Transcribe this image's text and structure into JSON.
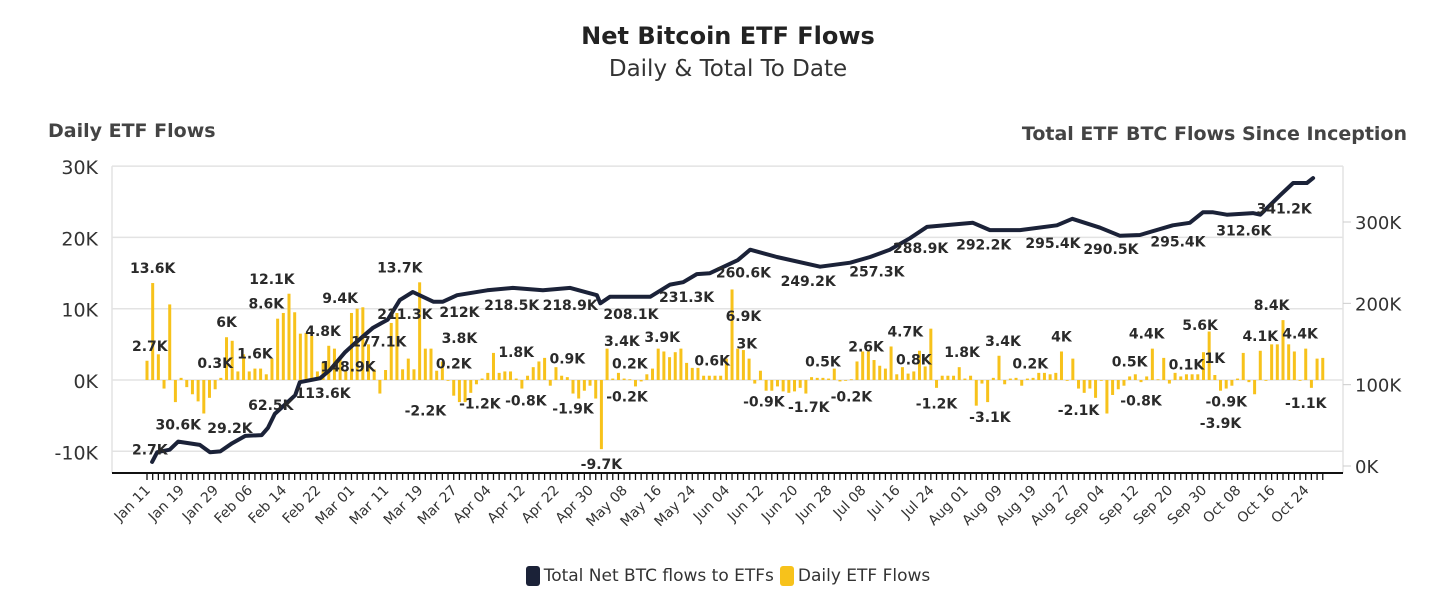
{
  "chart_data": {
    "type": "bar+line",
    "title": "Net Bitcoin ETF Flows",
    "subtitle": "Daily & Total To Date",
    "ylabel_left": "Daily ETF Flows",
    "ylabel_right": "Total ETF BTC Flows Since Inception",
    "ylim_left": [
      -10,
      30
    ],
    "ylim_right": [
      0,
      350
    ],
    "yticks_left": [
      "-10K",
      "0K",
      "10K",
      "20K",
      "30K"
    ],
    "yticks_left_values": [
      -10,
      0,
      10,
      20,
      30
    ],
    "yticks_right": [
      "0K",
      "100K",
      "200K",
      "300K"
    ],
    "yticks_right_values": [
      0,
      100,
      200,
      300
    ],
    "units": "thousand BTC",
    "grid": true,
    "legend_position": "bottom",
    "x_tick_labels": [
      "Jan 11",
      "Jan 19",
      "Jan 29",
      "Feb 06",
      "Feb 14",
      "Feb 22",
      "Mar 01",
      "Mar 11",
      "Mar 19",
      "Mar 27",
      "Apr 04",
      "Apr 12",
      "Apr 22",
      "Apr 30",
      "May 08",
      "May 16",
      "May 24",
      "Jun 04",
      "Jun 12",
      "Jun 20",
      "Jun 28",
      "Jul 08",
      "Jul 16",
      "Jul 24",
      "Aug 01",
      "Aug 09",
      "Aug 19",
      "Aug 27",
      "Sep 04",
      "Sep 12",
      "Sep 20",
      "Sep 30",
      "Oct 08",
      "Oct 16",
      "Oct 24"
    ],
    "x_tick_every_n_days": 6,
    "series": [
      {
        "name": "Daily ETF Flows",
        "type": "bar",
        "axis": "left",
        "color": "#f7c21b",
        "values": [
          2.7,
          13.6,
          3.6,
          -1.2,
          10.6,
          -3.1,
          0.3,
          -1.0,
          -2.0,
          -3.0,
          -4.7,
          -2.5,
          -1.3,
          0.3,
          6.0,
          5.5,
          1.2,
          3.6,
          1.2,
          1.6,
          1.6,
          0.8,
          3.0,
          8.6,
          9.4,
          12.1,
          9.5,
          6.5,
          6.6,
          6.2,
          1.2,
          2.5,
          4.8,
          4.4,
          3.0,
          1.2,
          9.4,
          10.0,
          10.2,
          5.0,
          1.5,
          -1.9,
          1.4,
          8.0,
          9.4,
          1.5,
          3.0,
          1.5,
          13.7,
          4.4,
          4.4,
          1.3,
          2.6,
          -0.1,
          -2.2,
          -3.1,
          -3.1,
          -1.8,
          -0.6,
          0.2,
          1.0,
          3.8,
          1.0,
          1.2,
          1.2,
          0.2,
          -1.2,
          0.6,
          1.8,
          2.6,
          3.1,
          -0.8,
          1.8,
          0.6,
          0.4,
          -1.9,
          -2.6,
          -1.5,
          -0.8,
          -2.6,
          -9.7,
          4.4,
          0.2,
          1.0,
          0.2,
          0.1,
          -0.9,
          -0.2,
          0.8,
          1.6,
          4.4,
          4.0,
          3.2,
          3.9,
          4.4,
          2.4,
          1.7,
          1.7,
          0.6,
          0.6,
          0.6,
          0.6,
          3.0,
          12.7,
          4.4,
          4.2,
          3.0,
          -0.5,
          1.3,
          -1.5,
          -1.5,
          -0.9,
          -1.6,
          -1.8,
          -1.6,
          -1.1,
          -1.9,
          0.4,
          0.3,
          0.3,
          0.2,
          1.6,
          -0.2,
          -0.1,
          0.1,
          2.6,
          4.0,
          4.0,
          2.8,
          2.0,
          1.6,
          4.7,
          0.8,
          1.8,
          0.9,
          1.2,
          4.1,
          1.9,
          7.2,
          -1.1,
          0.6,
          0.6,
          0.6,
          1.8,
          0.2,
          0.6,
          -3.6,
          -0.5,
          -3.1,
          0.3,
          3.4,
          -0.6,
          0.2,
          0.3,
          -0.8,
          0.2,
          0.3,
          1.0,
          1.0,
          0.8,
          1.0,
          4.0,
          0.0,
          3.0,
          -1.2,
          -1.8,
          -1.2,
          -2.5,
          0.0,
          -4.7,
          -2.1,
          -1.3,
          -0.8,
          0.5,
          0.8,
          -0.3,
          0.5,
          4.4,
          0.1,
          3.1,
          -0.5,
          1.0,
          0.5,
          0.8,
          0.8,
          0.8,
          3.9,
          6.8,
          0.7,
          -1.5,
          -1.2,
          -0.8,
          0.2,
          3.8,
          -0.3,
          -2.0,
          4.1,
          0.0,
          5.0,
          5.0,
          8.4,
          5.0,
          4.0,
          0.0,
          4.4,
          -1.1,
          3.0,
          3.1
        ]
      },
      {
        "name": "Total Net BTC flows to ETFs",
        "type": "line",
        "axis": "right",
        "color": "#1b2238",
        "points": [
          [
            0.9,
            5
          ],
          [
            1.8,
            17
          ],
          [
            4,
            20
          ],
          [
            5.5,
            30
          ],
          [
            9.3,
            26
          ],
          [
            11.1,
            17
          ],
          [
            12.9,
            18
          ],
          [
            15,
            28
          ],
          [
            17.3,
            37
          ],
          [
            20.2,
            38
          ],
          [
            21.3,
            47
          ],
          [
            22.5,
            64
          ],
          [
            26.1,
            87
          ],
          [
            26.9,
            103
          ],
          [
            30.5,
            108
          ],
          [
            32.2,
            118
          ],
          [
            34.9,
            140
          ],
          [
            36.3,
            149
          ],
          [
            39.8,
            170
          ],
          [
            42.4,
            180
          ],
          [
            44.5,
            204
          ],
          [
            46.8,
            214
          ],
          [
            50.4,
            202
          ],
          [
            52.1,
            202
          ],
          [
            54.6,
            210
          ],
          [
            59.9,
            216
          ],
          [
            64.4,
            219
          ],
          [
            69.7,
            216
          ],
          [
            74.5,
            219
          ],
          [
            79.2,
            210
          ],
          [
            79.8,
            200
          ],
          [
            81.5,
            208
          ],
          [
            88.6,
            208
          ],
          [
            92.1,
            223
          ],
          [
            94.4,
            226
          ],
          [
            96.8,
            236
          ],
          [
            99.1,
            237
          ],
          [
            104,
            253
          ],
          [
            106.2,
            266
          ],
          [
            110.9,
            257
          ],
          [
            118.5,
            245
          ],
          [
            123.8,
            250
          ],
          [
            127.3,
            257
          ],
          [
            130.8,
            266
          ],
          [
            134.3,
            280
          ],
          [
            137.3,
            294
          ],
          [
            145.4,
            299
          ],
          [
            148.4,
            290
          ],
          [
            153.7,
            290
          ],
          [
            160.2,
            296
          ],
          [
            162.9,
            304
          ],
          [
            167.8,
            293
          ],
          [
            171.3,
            283
          ],
          [
            174.8,
            284
          ],
          [
            180.6,
            296
          ],
          [
            183.6,
            299
          ],
          [
            185.9,
            312
          ],
          [
            187.7,
            312
          ],
          [
            190.1,
            309
          ],
          [
            194.7,
            311
          ],
          [
            196,
            309
          ],
          [
            199.5,
            333
          ],
          [
            201.8,
            348
          ],
          [
            204.2,
            348
          ],
          [
            205.3,
            354
          ]
        ]
      }
    ],
    "bar_labels": [
      {
        "day": 0.5,
        "text": "2.7K"
      },
      {
        "day": 1,
        "text": "13.6K"
      },
      {
        "day": 12,
        "text": "0.3K"
      },
      {
        "day": 14,
        "text": "6K"
      },
      {
        "day": 19,
        "text": "1.6K"
      },
      {
        "day": 21,
        "text": "8.6K"
      },
      {
        "day": 22,
        "text": "12.1K"
      },
      {
        "day": 31,
        "text": "4.8K"
      },
      {
        "day": 34,
        "text": "9.4K"
      },
      {
        "day": 44.5,
        "text": "13.7K"
      },
      {
        "day": 49,
        "text": "-2.2K"
      },
      {
        "day": 54,
        "text": "0.2K"
      },
      {
        "day": 55,
        "text": "3.8K"
      },
      {
        "day": 58.6,
        "text": "-1.2K"
      },
      {
        "day": 65,
        "text": "1.8K"
      },
      {
        "day": 66.7,
        "text": "-0.8K"
      },
      {
        "day": 74,
        "text": "0.9K"
      },
      {
        "day": 75,
        "text": "-1.9K"
      },
      {
        "day": 80,
        "text": "-9.7K"
      },
      {
        "day": 83.6,
        "text": "3.4K"
      },
      {
        "day": 84.5,
        "text": "-0.2K"
      },
      {
        "day": 85,
        "text": "0.2K"
      },
      {
        "day": 90.7,
        "text": "3.9K"
      },
      {
        "day": 99.5,
        "text": "0.6K"
      },
      {
        "day": 105,
        "text": "6.9K"
      },
      {
        "day": 105.6,
        "text": "3K"
      },
      {
        "day": 108.6,
        "text": "-0.9K"
      },
      {
        "day": 116.5,
        "text": "-1.7K"
      },
      {
        "day": 119,
        "text": "0.5K"
      },
      {
        "day": 124,
        "text": "-0.2K"
      },
      {
        "day": 126.6,
        "text": "2.6K"
      },
      {
        "day": 133.5,
        "text": "4.7K"
      },
      {
        "day": 135,
        "text": "0.8K"
      },
      {
        "day": 139,
        "text": "-1.2K"
      },
      {
        "day": 143.5,
        "text": "1.8K"
      },
      {
        "day": 148.4,
        "text": "-3.1K"
      },
      {
        "day": 150.7,
        "text": "3.4K"
      },
      {
        "day": 155.5,
        "text": "0.2K"
      },
      {
        "day": 161,
        "text": "4K"
      },
      {
        "day": 164,
        "text": "-2.1K"
      },
      {
        "day": 173,
        "text": "0.5K"
      },
      {
        "day": 175,
        "text": "-0.8K"
      },
      {
        "day": 176,
        "text": "4.4K"
      },
      {
        "day": 183,
        "text": "0.1K"
      },
      {
        "day": 185.4,
        "text": "5.6K"
      },
      {
        "day": 188,
        "text": "1K"
      },
      {
        "day": 189,
        "text": "-3.9K"
      },
      {
        "day": 190,
        "text": "-0.9K"
      },
      {
        "day": 196,
        "text": "4.1K"
      },
      {
        "day": 198,
        "text": "8.4K"
      },
      {
        "day": 203,
        "text": "4.4K"
      },
      {
        "day": 204,
        "text": "-1.1K"
      }
    ],
    "line_labels": [
      {
        "day": 0.5,
        "text": "2.7K",
        "side": "above"
      },
      {
        "day": 5.5,
        "text": "30.6K",
        "side": "above"
      },
      {
        "day": 14.6,
        "text": "29.2K",
        "side": "above"
      },
      {
        "day": 21.8,
        "text": "62.5K",
        "side": "above"
      },
      {
        "day": 31,
        "text": "113.6K",
        "side": "below"
      },
      {
        "day": 35.4,
        "text": "148.9K",
        "side": "below"
      },
      {
        "day": 40.8,
        "text": "177.1K",
        "side": "below"
      },
      {
        "day": 45.4,
        "text": "211.3K",
        "side": "below"
      },
      {
        "day": 55,
        "text": "212K",
        "side": "below"
      },
      {
        "day": 64.2,
        "text": "218.5K",
        "side": "below"
      },
      {
        "day": 74.5,
        "text": "218.9K",
        "side": "below"
      },
      {
        "day": 85.2,
        "text": "208.1K",
        "side": "below"
      },
      {
        "day": 95,
        "text": "231.3K",
        "side": "below"
      },
      {
        "day": 105,
        "text": "260.6K",
        "side": "below"
      },
      {
        "day": 116.4,
        "text": "249.2K",
        "side": "below"
      },
      {
        "day": 128.5,
        "text": "257.3K",
        "side": "below"
      },
      {
        "day": 136.2,
        "text": "288.9K",
        "side": "below"
      },
      {
        "day": 147.3,
        "text": "292.2K",
        "side": "below"
      },
      {
        "day": 159.5,
        "text": "295.4K",
        "side": "below"
      },
      {
        "day": 169.7,
        "text": "290.5K",
        "side": "below"
      },
      {
        "day": 181.5,
        "text": "295.4K",
        "side": "below"
      },
      {
        "day": 193.1,
        "text": "312.6K",
        "side": "below"
      },
      {
        "day": 200.2,
        "text": "341.2K",
        "side": "below"
      }
    ]
  },
  "header": {
    "title": "Net Bitcoin ETF Flows",
    "subtitle": "Daily & Total To Date"
  },
  "axes": {
    "left_title": "Daily ETF Flows",
    "right_title": "Total ETF BTC Flows Since Inception"
  },
  "legend": {
    "items": [
      {
        "label": "Total Net BTC flows to ETFs",
        "color": "#1b2238"
      },
      {
        "label": "Daily ETF Flows",
        "color": "#f7c21b"
      }
    ]
  }
}
